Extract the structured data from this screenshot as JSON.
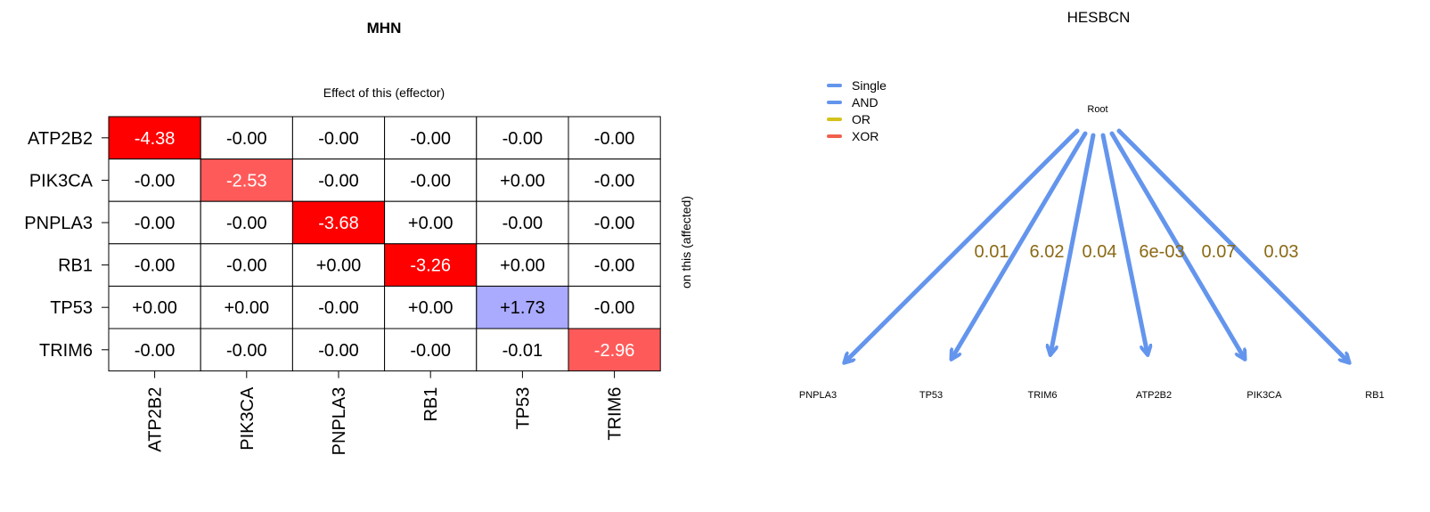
{
  "chart_data": [
    {
      "type": "heatmap",
      "title": "MHN",
      "xlabel": "Effect of this (effector)",
      "ylabel": "on this (affected)",
      "rows": [
        "ATP2B2",
        "PIK3CA",
        "PNPLA3",
        "RB1",
        "TP53",
        "TRIM6"
      ],
      "cols": [
        "ATP2B2",
        "PIK3CA",
        "PNPLA3",
        "RB1",
        "TP53",
        "TRIM6"
      ],
      "labels": [
        [
          "-4.38",
          "-0.00",
          "-0.00",
          "-0.00",
          "-0.00",
          "-0.00"
        ],
        [
          "-0.00",
          "-2.53",
          "-0.00",
          "-0.00",
          "+0.00",
          "-0.00"
        ],
        [
          "-0.00",
          "-0.00",
          "-3.68",
          "+0.00",
          "-0.00",
          "-0.00"
        ],
        [
          "-0.00",
          "-0.00",
          "+0.00",
          "-3.26",
          "+0.00",
          "-0.00"
        ],
        [
          "+0.00",
          "+0.00",
          "-0.00",
          "+0.00",
          "+1.73",
          "-0.00"
        ],
        [
          "-0.00",
          "-0.00",
          "-0.00",
          "-0.00",
          "-0.01",
          "-2.96"
        ]
      ],
      "values": [
        [
          -4.38,
          0,
          0,
          0,
          0,
          0
        ],
        [
          0,
          -2.53,
          0,
          0,
          0,
          0
        ],
        [
          0,
          0,
          -3.68,
          0,
          0,
          0
        ],
        [
          0,
          0,
          0,
          -3.26,
          0,
          0
        ],
        [
          0,
          0,
          0,
          0,
          1.73,
          0
        ],
        [
          0,
          0,
          0,
          0,
          -0.01,
          -2.96
        ]
      ],
      "colors": {
        "strong_negative": "#ff0000",
        "medium_negative": "#ff5a5a",
        "positive": "#aaaaff",
        "neutral": "#ffffff",
        "text_on_dark": "#ffffff",
        "text_default": "#000000"
      }
    },
    {
      "type": "diagram",
      "title": "HESBCN",
      "root": "Root",
      "legend": [
        {
          "label": "Single",
          "color": "#6495ed"
        },
        {
          "label": "AND",
          "color": "#6495ed"
        },
        {
          "label": "OR",
          "color": "#d4c21a"
        },
        {
          "label": "XOR",
          "color": "#f0604d"
        }
      ],
      "edges": [
        {
          "to": "PNPLA3",
          "label": "0.01",
          "type": "Single"
        },
        {
          "to": "TP53",
          "label": "6.02",
          "type": "Single"
        },
        {
          "to": "TRIM6",
          "label": "0.04",
          "type": "Single"
        },
        {
          "to": "ATP2B2",
          "label": "6e-03",
          "type": "Single"
        },
        {
          "to": "PIK3CA",
          "label": "0.07",
          "type": "Single"
        },
        {
          "to": "RB1",
          "label": "0.03",
          "type": "Single"
        }
      ],
      "edge_color": "#6495ed",
      "label_color": "#8b6914"
    }
  ]
}
